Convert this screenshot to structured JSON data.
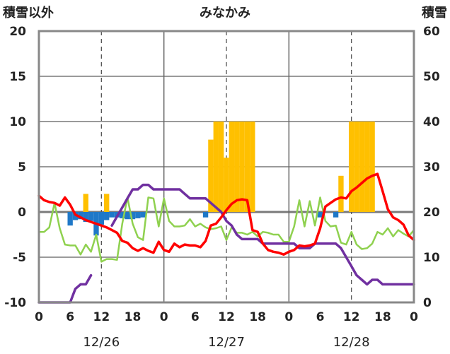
{
  "chart_data": {
    "type": "bar+line",
    "title": "みなかみ",
    "left_axis_label": "積雪以外",
    "right_axis_label": "積雪",
    "y_left": {
      "min": -10,
      "max": 20,
      "ticks": [
        -10,
        -5,
        0,
        5,
        10,
        15,
        20
      ]
    },
    "y_right": {
      "min": 0,
      "max": 60,
      "ticks": [
        0,
        10,
        20,
        30,
        40,
        50,
        60
      ]
    },
    "x": {
      "min": 0,
      "max": 72,
      "unit": "hours since 12/26 00:00"
    },
    "x_tick_labels": [
      "0",
      "6",
      "12",
      "18",
      "0",
      "6",
      "12",
      "18",
      "0",
      "6",
      "12",
      "18",
      "0"
    ],
    "x_tick_hours": [
      0,
      6,
      12,
      18,
      24,
      30,
      36,
      42,
      48,
      54,
      60,
      66,
      72
    ],
    "dates": [
      {
        "label": "12/26",
        "hour": 12
      },
      {
        "label": "12/27",
        "hour": 36
      },
      {
        "label": "12/28",
        "hour": 60
      }
    ],
    "grid": {
      "solid_hours": [
        24,
        48
      ],
      "dashed_hours": [
        12,
        36,
        60
      ]
    },
    "colors": {
      "orange_bars": "#ffc000",
      "blue_bars": "#1f78c8",
      "red_line": "#ff0000",
      "green_line": "#8fd14f",
      "purple_line": "#7030a0",
      "frame": "#888888"
    },
    "series": [
      {
        "color": "orange",
        "kind": "bar",
        "axis": "left",
        "points": [
          [
            9,
            2
          ],
          [
            13,
            2
          ],
          [
            33,
            8
          ],
          [
            34,
            10
          ],
          [
            35,
            10
          ],
          [
            36,
            6
          ],
          [
            37,
            10
          ],
          [
            38,
            10
          ],
          [
            39,
            10
          ],
          [
            40,
            10
          ],
          [
            41,
            10
          ],
          [
            58,
            4
          ],
          [
            60,
            10
          ],
          [
            61,
            10
          ],
          [
            62,
            10
          ],
          [
            63,
            10
          ],
          [
            64,
            10
          ]
        ]
      },
      {
        "color": "blue",
        "kind": "bar",
        "axis": "left",
        "points": [
          [
            6,
            -1.5
          ],
          [
            7,
            -0.9
          ],
          [
            8,
            -0.8
          ],
          [
            9,
            -1.1
          ],
          [
            10,
            -1.0
          ],
          [
            11,
            -2.6
          ],
          [
            12,
            -1.4
          ],
          [
            13,
            -0.9
          ],
          [
            14,
            -0.6
          ],
          [
            15,
            -0.6
          ],
          [
            16,
            -0.7
          ],
          [
            17,
            -0.8
          ],
          [
            18,
            -0.8
          ],
          [
            19,
            -0.7
          ],
          [
            20,
            -0.6
          ],
          [
            32,
            -0.6
          ],
          [
            54,
            -0.6
          ],
          [
            57,
            -0.6
          ]
        ]
      },
      {
        "color": "red",
        "kind": "line",
        "axis": "left",
        "points": [
          [
            0,
            1.8
          ],
          [
            1,
            1.3
          ],
          [
            2,
            1.1
          ],
          [
            3,
            1.0
          ],
          [
            4,
            0.7
          ],
          [
            5,
            1.6
          ],
          [
            6,
            0.8
          ],
          [
            7,
            -0.3
          ],
          [
            8,
            -0.6
          ],
          [
            9,
            -0.9
          ],
          [
            10,
            -1.1
          ],
          [
            11,
            -1.3
          ],
          [
            12,
            -1.5
          ],
          [
            13,
            -1.7
          ],
          [
            14,
            -2.0
          ],
          [
            15,
            -2.3
          ],
          [
            16,
            -3.2
          ],
          [
            17,
            -3.4
          ],
          [
            18,
            -4.0
          ],
          [
            19,
            -4.3
          ],
          [
            20,
            -4.0
          ],
          [
            21,
            -4.3
          ],
          [
            22,
            -4.5
          ],
          [
            23,
            -3.3
          ],
          [
            24,
            -4.2
          ],
          [
            25,
            -4.4
          ],
          [
            26,
            -3.5
          ],
          [
            27,
            -3.9
          ],
          [
            28,
            -3.6
          ],
          [
            29,
            -3.7
          ],
          [
            30,
            -3.7
          ],
          [
            31,
            -3.9
          ],
          [
            32,
            -3.2
          ],
          [
            33,
            -1.5
          ],
          [
            34,
            -1.3
          ],
          [
            35,
            -0.6
          ],
          [
            36,
            0.2
          ],
          [
            37,
            0.9
          ],
          [
            38,
            1.3
          ],
          [
            39,
            1.4
          ],
          [
            40,
            1.3
          ],
          [
            41,
            -2.0
          ],
          [
            42,
            -2.2
          ],
          [
            43,
            -3.5
          ],
          [
            44,
            -4.2
          ],
          [
            45,
            -4.4
          ],
          [
            46,
            -4.5
          ],
          [
            47,
            -4.7
          ],
          [
            48,
            -4.4
          ],
          [
            49,
            -4.2
          ],
          [
            50,
            -3.7
          ],
          [
            51,
            -3.8
          ],
          [
            52,
            -3.7
          ],
          [
            53,
            -3.5
          ],
          [
            54,
            -1.8
          ],
          [
            55,
            0.6
          ],
          [
            56,
            1.0
          ],
          [
            57,
            1.4
          ],
          [
            58,
            1.6
          ],
          [
            59,
            1.5
          ],
          [
            60,
            2.3
          ],
          [
            61,
            2.7
          ],
          [
            62,
            3.2
          ],
          [
            63,
            3.7
          ],
          [
            64,
            4.0
          ],
          [
            65,
            4.2
          ],
          [
            66,
            2.3
          ],
          [
            67,
            0.3
          ],
          [
            68,
            -0.6
          ],
          [
            69,
            -0.9
          ],
          [
            70,
            -1.4
          ],
          [
            71,
            -2.6
          ],
          [
            72,
            -3.1
          ]
        ]
      },
      {
        "color": "green",
        "kind": "line",
        "axis": "left",
        "points": [
          [
            0,
            -2.2
          ],
          [
            1,
            -2.2
          ],
          [
            2,
            -1.7
          ],
          [
            3,
            1.0
          ],
          [
            4,
            -1.8
          ],
          [
            5,
            -3.6
          ],
          [
            6,
            -3.7
          ],
          [
            7,
            -3.7
          ],
          [
            8,
            -4.7
          ],
          [
            9,
            -3.6
          ],
          [
            10,
            -4.4
          ],
          [
            11,
            -2.5
          ],
          [
            12,
            -5.5
          ],
          [
            13,
            -5.2
          ],
          [
            14,
            -5.2
          ],
          [
            15,
            -5.3
          ],
          [
            16,
            -1.3
          ],
          [
            17,
            1.6
          ],
          [
            18,
            -1.3
          ],
          [
            19,
            -2.8
          ],
          [
            20,
            -3.1
          ],
          [
            21,
            1.6
          ],
          [
            22,
            1.5
          ],
          [
            23,
            -1.6
          ],
          [
            24,
            1.5
          ],
          [
            25,
            -1.0
          ],
          [
            26,
            -1.6
          ],
          [
            27,
            -1.6
          ],
          [
            28,
            -1.5
          ],
          [
            29,
            -0.8
          ],
          [
            30,
            -1.6
          ],
          [
            31,
            -1.3
          ],
          [
            32,
            -1.7
          ],
          [
            33,
            -1.9
          ],
          [
            34,
            -1.8
          ],
          [
            35,
            -1.6
          ],
          [
            36,
            -3.1
          ],
          [
            37,
            -1.7
          ],
          [
            38,
            -2.3
          ],
          [
            39,
            -2.3
          ],
          [
            40,
            -2.5
          ],
          [
            41,
            -2.2
          ],
          [
            42,
            -2.7
          ],
          [
            43,
            -2.2
          ],
          [
            44,
            -2.3
          ],
          [
            45,
            -2.5
          ],
          [
            46,
            -2.5
          ],
          [
            47,
            -3.3
          ],
          [
            48,
            -3.3
          ],
          [
            49,
            -1.6
          ],
          [
            50,
            1.3
          ],
          [
            51,
            -1.6
          ],
          [
            52,
            1.2
          ],
          [
            53,
            -1.5
          ],
          [
            54,
            1.6
          ],
          [
            55,
            -1.0
          ],
          [
            56,
            -1.6
          ],
          [
            57,
            -1.5
          ],
          [
            58,
            -3.4
          ],
          [
            59,
            -3.6
          ],
          [
            60,
            -2.2
          ],
          [
            61,
            -3.6
          ],
          [
            62,
            -4.1
          ],
          [
            63,
            -4.0
          ],
          [
            64,
            -3.5
          ],
          [
            65,
            -2.2
          ],
          [
            66,
            -2.5
          ],
          [
            67,
            -1.8
          ],
          [
            68,
            -2.7
          ],
          [
            69,
            -2.0
          ],
          [
            70,
            -2.4
          ],
          [
            71,
            -2.7
          ],
          [
            72,
            -2.0
          ]
        ]
      },
      {
        "color": "purple",
        "kind": "line",
        "axis": "right",
        "points": [
          [
            0,
            0
          ],
          [
            1,
            0
          ],
          [
            2,
            0
          ],
          [
            3,
            0
          ],
          [
            4,
            0
          ],
          [
            5,
            0
          ],
          [
            6,
            0
          ],
          [
            7,
            3
          ],
          [
            8,
            4
          ],
          [
            9,
            4
          ],
          [
            10,
            6
          ],
          [
            null,
            null
          ],
          [
            14,
            17
          ],
          [
            15,
            19
          ],
          [
            16,
            21
          ],
          [
            17,
            23
          ],
          [
            18,
            25
          ],
          [
            19,
            25
          ],
          [
            20,
            26
          ],
          [
            21,
            26
          ],
          [
            22,
            25
          ],
          [
            23,
            25
          ],
          [
            24,
            25
          ],
          [
            25,
            25
          ],
          [
            26,
            25
          ],
          [
            27,
            25
          ],
          [
            28,
            24
          ],
          [
            29,
            23
          ],
          [
            30,
            23
          ],
          [
            31,
            23
          ],
          [
            32,
            23
          ],
          [
            33,
            22
          ],
          [
            34,
            21
          ],
          [
            35,
            20
          ],
          [
            36,
            18
          ],
          [
            37,
            17
          ],
          [
            38,
            15
          ],
          [
            39,
            14
          ],
          [
            40,
            14
          ],
          [
            41,
            14
          ],
          [
            42,
            14
          ],
          [
            43,
            13
          ],
          [
            44,
            13
          ],
          [
            45,
            13
          ],
          [
            46,
            13
          ],
          [
            47,
            13
          ],
          [
            48,
            13
          ],
          [
            49,
            13
          ],
          [
            50,
            12
          ],
          [
            51,
            12
          ],
          [
            52,
            12
          ],
          [
            53,
            13
          ],
          [
            54,
            13
          ],
          [
            55,
            13
          ],
          [
            56,
            13
          ],
          [
            57,
            13
          ],
          [
            58,
            12
          ],
          [
            59,
            10
          ],
          [
            60,
            8
          ],
          [
            61,
            6
          ],
          [
            62,
            5
          ],
          [
            63,
            4
          ],
          [
            64,
            5
          ],
          [
            65,
            5
          ],
          [
            66,
            4
          ],
          [
            67,
            4
          ],
          [
            68,
            4
          ],
          [
            69,
            4
          ],
          [
            70,
            4
          ],
          [
            71,
            4
          ],
          [
            72,
            4
          ]
        ]
      }
    ]
  }
}
